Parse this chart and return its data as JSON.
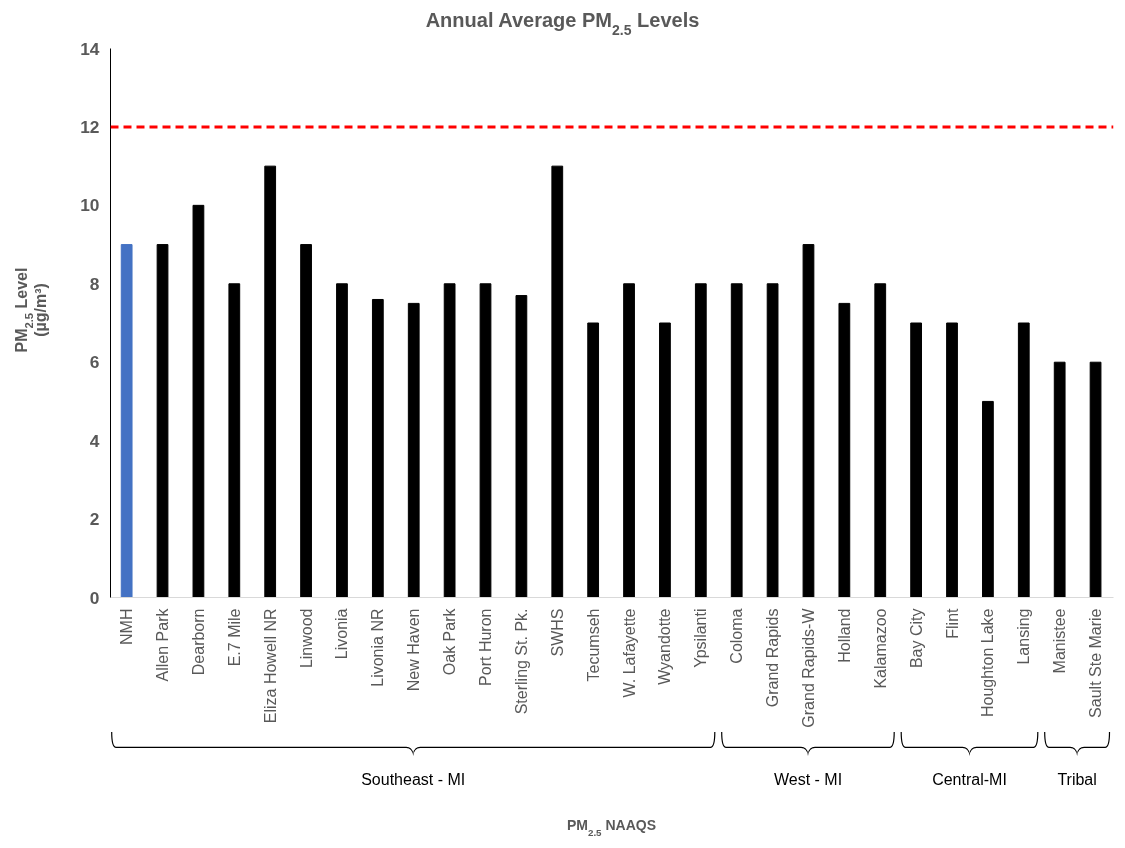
{
  "chart_data": {
    "type": "bar",
    "title": "Annual Average PM$_{2.5}$ Levels",
    "ylabel": "PM$_{2.5}$ Level\n(µg/m³)",
    "categories": [
      "NMH",
      "Allen Park",
      "Dearborn",
      "E.7 Mile",
      "Eliza Howell NR",
      "Linwood",
      "Livonia",
      "Livonia NR",
      "New Haven",
      "Oak Park",
      "Port Huron",
      "Sterling St. Pk.",
      "SWHS",
      "Tecumseh",
      "W. Lafayette",
      "Wyandotte",
      "Ypsilanti",
      "Coloma",
      "Grand Rapids",
      "Grand Rapids-W",
      "Holland",
      "Kalamazoo",
      "Bay City",
      "Flint",
      "Houghton Lake",
      "Lansing",
      "Manistee",
      "Sault Ste Marie"
    ],
    "values": [
      9,
      9,
      10,
      8,
      11,
      9,
      8,
      7.6,
      7.5,
      8,
      8,
      7.7,
      11,
      7,
      8,
      7,
      8,
      8,
      8,
      9,
      7.5,
      8,
      7,
      7,
      5,
      7,
      6,
      6
    ],
    "colors": [
      "#4472c4",
      "#000000",
      "#000000",
      "#000000",
      "#000000",
      "#000000",
      "#000000",
      "#000000",
      "#000000",
      "#000000",
      "#000000",
      "#000000",
      "#000000",
      "#000000",
      "#000000",
      "#000000",
      "#000000",
      "#000000",
      "#000000",
      "#000000",
      "#000000",
      "#000000",
      "#000000",
      "#000000",
      "#000000",
      "#000000",
      "#000000",
      "#000000"
    ],
    "ylim": [
      0,
      14
    ],
    "yticks": [
      0,
      2,
      4,
      6,
      8,
      10,
      12,
      14
    ],
    "grid": false,
    "ref_lines": [
      {
        "axis": "y",
        "value": 12,
        "color": "#ff0000",
        "line_style": "dashed"
      }
    ],
    "annotations": [
      "Southeast - MI",
      "West - MI",
      "Central-MI",
      "Tribal",
      "PM$_{2.5}$ NAAQS"
    ]
  }
}
